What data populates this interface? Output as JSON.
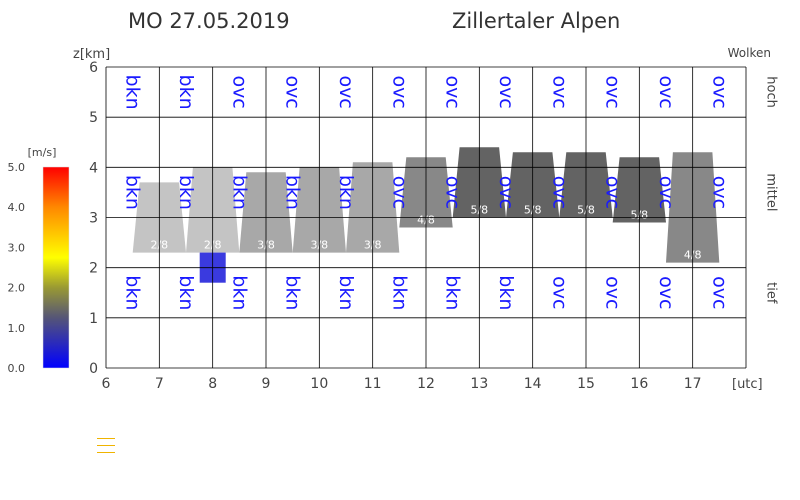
{
  "header": {
    "date": "MO 27.05.2019",
    "region": "Zillertaler Alpen"
  },
  "chart_data": {
    "type": "bar",
    "title": "",
    "x_range": [
      6,
      18
    ],
    "x_ticks": [
      6,
      7,
      8,
      9,
      10,
      11,
      12,
      13,
      14,
      15,
      16,
      17
    ],
    "x_unit_label": "[utc]",
    "y_range": [
      0,
      6
    ],
    "y_ticks": [
      0,
      1,
      2,
      3,
      4,
      5,
      6
    ],
    "y_unit_label": "z[km]",
    "right_label": "Wolken",
    "layer_labels": [
      "hoch",
      "mittel",
      "tief"
    ],
    "grid": true,
    "text_color": "#1a1aff",
    "hours": [
      7,
      8,
      9,
      10,
      11,
      12,
      13,
      14,
      15,
      16,
      17,
      18
    ],
    "layers": {
      "hoch": [
        "bkn",
        "bkn",
        "ovc",
        "ovc",
        "ovc",
        "ovc",
        "ovc",
        "ovc",
        "ovc",
        "ovc",
        "ovc",
        "ovc"
      ],
      "mittel": [
        "bkn",
        "bkn",
        "bkn",
        "bkn",
        "bkn",
        "ovc",
        "ovc",
        "ovc",
        "ovc",
        "ovc",
        "ovc",
        "ovc"
      ],
      "tief": [
        "bkn",
        "bkn",
        "bkn",
        "bkn",
        "bkn",
        "bkn",
        "bkn",
        "bkn",
        "ovc",
        "ovc",
        "ovc",
        "ovc"
      ]
    },
    "clouds": [
      {
        "hour": 7,
        "base": 2.3,
        "top": 3.7,
        "cover": "2/8",
        "color": "#c4c4c4"
      },
      {
        "hour": 8,
        "base": 2.3,
        "top": 4.0,
        "cover": "2/8",
        "color": "#c4c4c4"
      },
      {
        "hour": 9,
        "base": 2.3,
        "top": 3.9,
        "cover": "3/8",
        "color": "#a8a8a8"
      },
      {
        "hour": 10,
        "base": 2.3,
        "top": 4.0,
        "cover": "3/8",
        "color": "#a8a8a8"
      },
      {
        "hour": 11,
        "base": 2.3,
        "top": 4.1,
        "cover": "3/8",
        "color": "#a8a8a8"
      },
      {
        "hour": 12,
        "base": 2.8,
        "top": 4.2,
        "cover": "4/8",
        "color": "#888888"
      },
      {
        "hour": 13,
        "base": 3.0,
        "top": 4.4,
        "cover": "5/8",
        "color": "#636363"
      },
      {
        "hour": 14,
        "base": 3.0,
        "top": 4.3,
        "cover": "5/8",
        "color": "#636363"
      },
      {
        "hour": 15,
        "base": 3.0,
        "top": 4.3,
        "cover": "5/8",
        "color": "#636363"
      },
      {
        "hour": 16,
        "base": 2.9,
        "top": 4.2,
        "cover": "5/8",
        "color": "#636363"
      },
      {
        "hour": 17,
        "base": 2.1,
        "top": 4.3,
        "cover": "4/8",
        "color": "#888888"
      }
    ],
    "vertical_wind": [
      {
        "hour": 8,
        "base": 1.7,
        "top": 2.3,
        "color": "#3a3adf"
      }
    ],
    "colorbar": {
      "unit": "[m/s]",
      "ticks": [
        "0.0",
        "1.0",
        "2.0",
        "3.0",
        "4.0",
        "5.0"
      ],
      "range": [
        0,
        5
      ]
    }
  }
}
